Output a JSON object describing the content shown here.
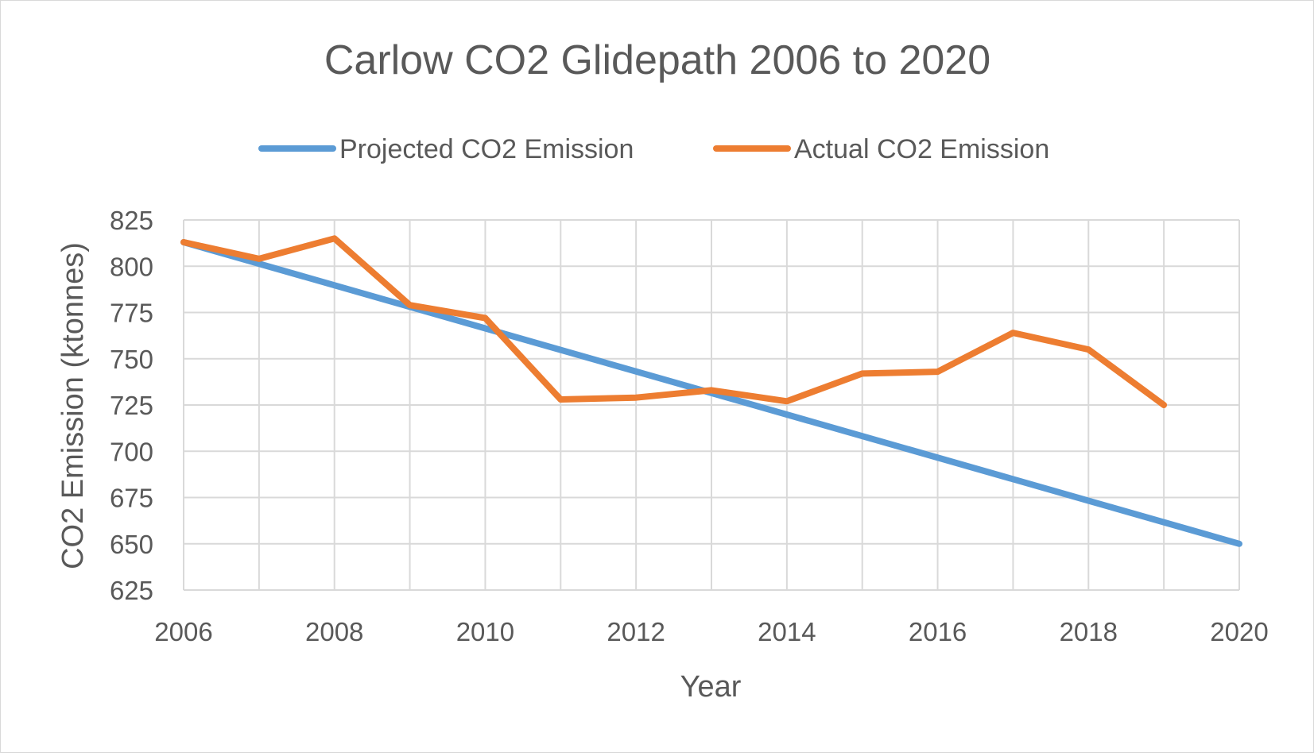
{
  "chart_data": {
    "type": "line",
    "title": "Carlow CO2 Glidepath 2006 to 2020",
    "xlabel": "Year",
    "ylabel": "CO2 Emission (ktonnes)",
    "xlim": [
      2006,
      2020
    ],
    "ylim": [
      625,
      825
    ],
    "x_ticks": [
      "2006",
      "2008",
      "2010",
      "2012",
      "2014",
      "2016",
      "2018",
      "2020"
    ],
    "y_ticks": [
      "625",
      "650",
      "675",
      "700",
      "725",
      "750",
      "775",
      "800",
      "825"
    ],
    "grid": true,
    "legend_position": "top",
    "series": [
      {
        "name": "Projected CO2 Emission",
        "color": "#5b9bd5",
        "x": [
          2006,
          2020
        ],
        "y": [
          813,
          650
        ]
      },
      {
        "name": "Actual CO2 Emission",
        "color": "#ed7d31",
        "x": [
          2006,
          2007,
          2008,
          2009,
          2010,
          2011,
          2012,
          2013,
          2014,
          2015,
          2016,
          2017,
          2018,
          2019
        ],
        "y": [
          813,
          804,
          815,
          779,
          772,
          728,
          729,
          733,
          727,
          742,
          743,
          764,
          755,
          725
        ]
      }
    ]
  }
}
